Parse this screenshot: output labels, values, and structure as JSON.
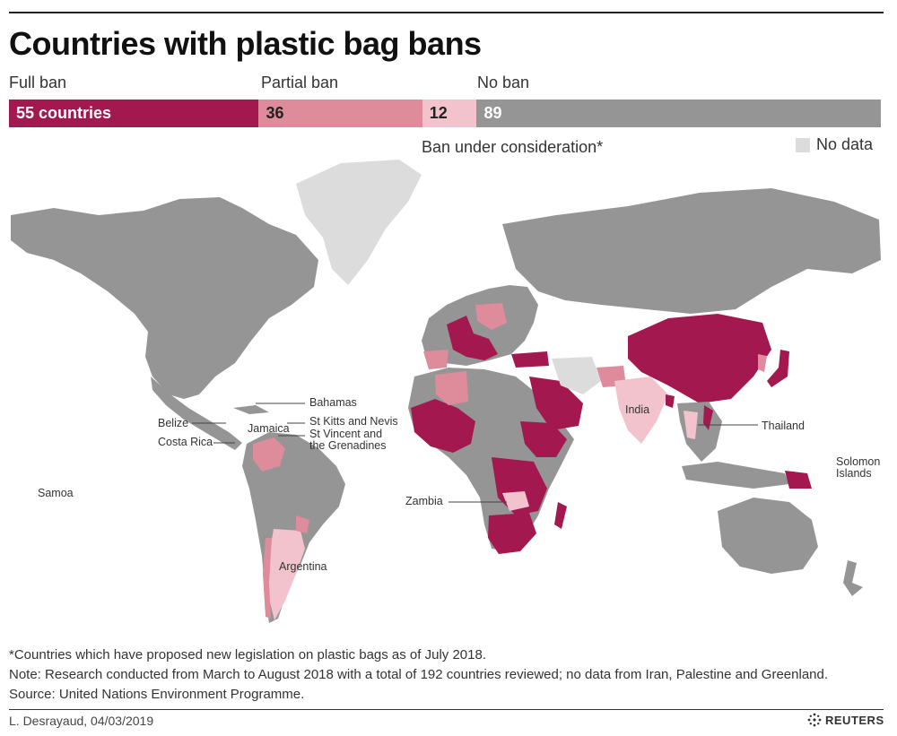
{
  "title": "Countries with plastic bag bans",
  "legend": {
    "full_ban_label": "Full ban",
    "partial_ban_label": "Partial ban",
    "no_ban_label": "No ban",
    "full_ban_value": "55 countries",
    "partial_ban_value": "36",
    "consideration_value": "12",
    "no_ban_value": "89",
    "consideration_label": "Ban under consideration*",
    "no_data_label": "No data"
  },
  "counts": {
    "full_ban": 55,
    "partial_ban": 36,
    "under_consideration": 12,
    "no_ban": 89
  },
  "colors": {
    "full_ban": "#a2184f",
    "partial_ban": "#de8b9b",
    "under_consideration": "#f2c3cc",
    "no_ban": "#959595",
    "no_data": "#dcdcdc"
  },
  "map_labels": {
    "bahamas": "Bahamas",
    "belize": "Belize",
    "jamaica": "Jamaica",
    "costa_rica": "Costa Rica",
    "st_kitts": "St Kitts and Nevis",
    "st_vincent_1": "St Vincent and",
    "st_vincent_2": "the Grenadines",
    "india": "India",
    "thailand": "Thailand",
    "solomon_1": "Solomon",
    "solomon_2": "Islands",
    "samoa": "Samoa",
    "zambia": "Zambia",
    "argentina": "Argentina"
  },
  "footnotes": {
    "asterisk": "*Countries which have proposed new legislation on plastic bags as of July 2018.",
    "note": "Note: Research conducted from March to August 2018 with a total of 192 countries reviewed; no data from Iran, Palestine and Greenland.",
    "source": "Source: United Nations Environment Programme."
  },
  "credit": "L. Desrayaud, 04/03/2019",
  "logo": {
    "text": "REUTERS",
    "icon": "reuters-dots-icon"
  }
}
